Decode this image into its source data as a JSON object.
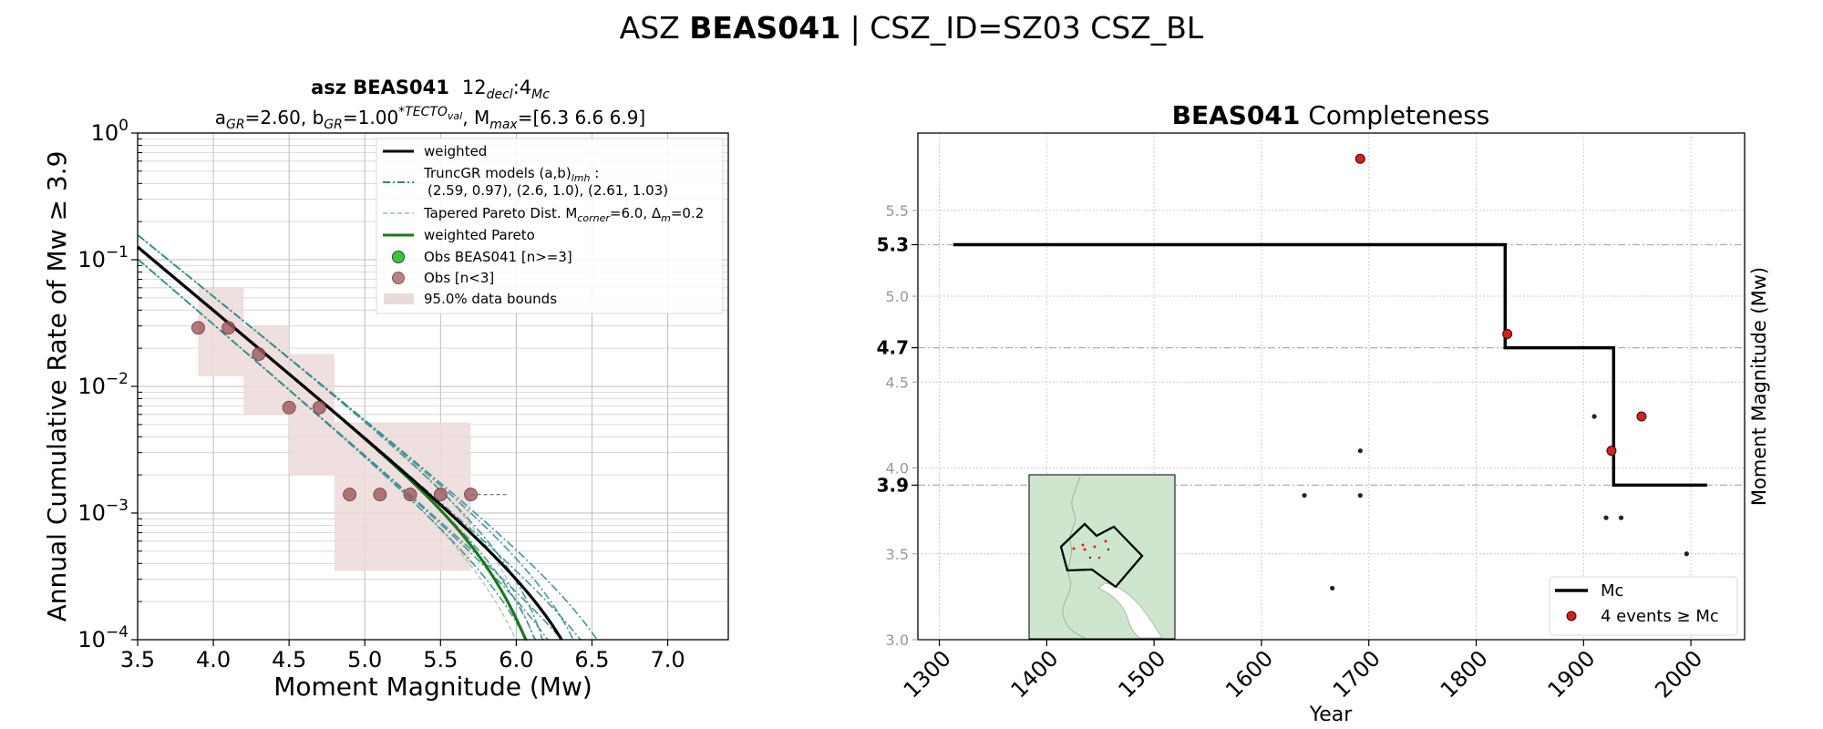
{
  "suptitle": {
    "normal": "ASZ ",
    "bold": "BEAS041",
    "rest": " | CSZ_ID=SZ03 CSZ_BL"
  },
  "chart_data": [
    {
      "type": "line",
      "title_line1": {
        "bold": "asz BEAS041",
        "num": "12",
        "sub1": "decl",
        "colon": ":4",
        "sub2": "Mc"
      },
      "title_line2": {
        "a": "a",
        "a_sub": "GR",
        "a_val": "=2.60,  b",
        "b_sub": "GR",
        "b_val": "=1.00",
        "b_sup": "*TECTO",
        "b_sup_sub": "val",
        "m_text": ", M",
        "m_sub": "max",
        "m_val": "=[6.3 6.6 6.9]"
      },
      "xlabel": "Moment Magnitude (Mw)",
      "ylabel": "Annual Cumulative Rate of Mw  ≥  3.9",
      "xscale": "linear",
      "yscale": "log",
      "xlim": [
        3.5,
        7.4
      ],
      "ylim": [
        0.0001,
        1
      ],
      "grid": true,
      "xticks": [
        3.5,
        4.0,
        4.5,
        5.0,
        5.5,
        6.0,
        6.5,
        7.0
      ],
      "xtick_labels": [
        "3.5",
        "4.0",
        "4.5",
        "5.0",
        "5.5",
        "6.0",
        "6.5",
        "7.0"
      ],
      "yticks": [
        0.0001,
        0.001,
        0.01,
        0.1,
        1
      ],
      "ytick_base": "10",
      "ytick_exps": [
        "−4",
        "−3",
        "−2",
        "−1",
        "0"
      ],
      "legend": {
        "placement": "upper right",
        "weighted": "weighted",
        "truncgr_1": "TruncGR models (a,b)",
        "truncgr_sub": "lmh",
        "truncgr_colon": " :",
        "truncgr_2": "(2.59, 0.97), (2.6, 1.0), (2.61, 1.03)",
        "tapered_a": "Tapered Pareto Dist. M",
        "tapered_sub1": "corner",
        "tapered_b": "=6.0, Δ",
        "tapered_sub2": "m",
        "tapered_c": "=0.2",
        "weighted_pareto": "weighted Pareto",
        "obs_ge3": "Obs BEAS041 [n>=3]",
        "obs_lt3": "Obs [n<3]",
        "bounds": "95.0% data bounds"
      },
      "colors": {
        "weighted": "#000000",
        "truncgr": "#2e8b8f",
        "tapered": "#8fc99a",
        "weighted_pareto": "#1a7a1a",
        "obs_ge3": "#3cc43c",
        "obs_lt3": "#a0585a",
        "bounds": "#ecd9d9"
      },
      "truncgr_models": [
        {
          "a": 2.59,
          "b": 0.97,
          "mmax": [
            6.3,
            6.6,
            6.9
          ]
        },
        {
          "a": 2.6,
          "b": 1.0,
          "mmax": [
            6.3,
            6.6,
            6.9
          ]
        },
        {
          "a": 2.61,
          "b": 1.03,
          "mmax": [
            6.3,
            6.6,
            6.9
          ]
        }
      ],
      "weighted_model": {
        "a": 2.6,
        "b": 1.0,
        "mmax": 6.6
      },
      "weighted_pareto": {
        "a": 2.6,
        "b": 1.0,
        "mcorner": 6.0
      },
      "obs_lt3": [
        {
          "x": 3.9,
          "y": 0.029
        },
        {
          "x": 4.1,
          "y": 0.029
        },
        {
          "x": 4.3,
          "y": 0.018
        },
        {
          "x": 4.5,
          "y": 0.0068
        },
        {
          "x": 4.7,
          "y": 0.0068
        },
        {
          "x": 4.9,
          "y": 0.0014
        },
        {
          "x": 5.1,
          "y": 0.0014
        },
        {
          "x": 5.3,
          "y": 0.0014
        },
        {
          "x": 5.5,
          "y": 0.0014
        },
        {
          "x": 5.7,
          "y": 0.0014
        }
      ],
      "bounds": [
        {
          "x0": 3.9,
          "x1": 4.2,
          "lo": 0.012,
          "hi": 0.06
        },
        {
          "x0": 4.2,
          "x1": 4.5,
          "lo": 0.006,
          "hi": 0.03
        },
        {
          "x0": 4.5,
          "x1": 4.8,
          "lo": 0.002,
          "hi": 0.018
        },
        {
          "x0": 4.8,
          "x1": 5.2,
          "lo": 0.00035,
          "hi": 0.0052
        },
        {
          "x0": 5.2,
          "x1": 5.7,
          "lo": 0.00035,
          "hi": 0.0052
        }
      ],
      "last_point_extension": {
        "x0": 5.7,
        "x1": 5.95,
        "y": 0.0014
      }
    },
    {
      "type": "scatter",
      "title": {
        "bold": "BEAS041",
        "rest": " Completeness"
      },
      "xlabel": "Year",
      "ylabel": "Moment Magnitude (Mw)",
      "xlim": [
        1280,
        2050
      ],
      "ylim": [
        3.0,
        5.95
      ],
      "grid": true,
      "xticks": [
        1300,
        1400,
        1500,
        1600,
        1700,
        1800,
        1900,
        2000
      ],
      "xtick_labels": [
        "1300",
        "1400",
        "1500",
        "1600",
        "1700",
        "1800",
        "1900",
        "2000"
      ],
      "yticks_minor": [
        "3.0",
        "3.5",
        "4.0",
        "4.5",
        "5.0",
        "5.5"
      ],
      "yticks_major": [
        "3.9",
        "4.7",
        "5.3"
      ],
      "ytick_values_minor": [
        3.0,
        3.5,
        4.0,
        4.5,
        5.0,
        5.5
      ],
      "ytick_values_major": [
        3.9,
        4.7,
        5.3
      ],
      "mc_step": [
        {
          "x": 1313,
          "y": 5.3
        },
        {
          "x": 1827,
          "y": 5.3
        },
        {
          "x": 1827,
          "y": 4.7
        },
        {
          "x": 1928,
          "y": 4.7
        },
        {
          "x": 1928,
          "y": 3.9
        },
        {
          "x": 2015,
          "y": 3.9
        }
      ],
      "events_ge_mc": [
        {
          "x": 1692,
          "y": 5.8
        },
        {
          "x": 1829,
          "y": 4.78
        },
        {
          "x": 1926,
          "y": 4.1
        },
        {
          "x": 1954,
          "y": 4.3
        }
      ],
      "events_small": [
        {
          "x": 1640,
          "y": 3.84
        },
        {
          "x": 1666,
          "y": 3.3
        },
        {
          "x": 1692,
          "y": 4.1
        },
        {
          "x": 1692,
          "y": 3.84
        },
        {
          "x": 1910,
          "y": 4.3
        },
        {
          "x": 1921,
          "y": 3.71
        },
        {
          "x": 1935,
          "y": 3.71
        },
        {
          "x": 1996,
          "y": 3.5
        }
      ],
      "legend": {
        "placement": "lower right",
        "mc": "Mc",
        "events": "4 events  ≥  Mc"
      },
      "colors": {
        "mc": "#000000",
        "events": "#d42020",
        "small": "#222222",
        "grid": "#cccccc",
        "inset_bg": "#cde6cd",
        "inset_dots": "#e02020"
      }
    }
  ]
}
